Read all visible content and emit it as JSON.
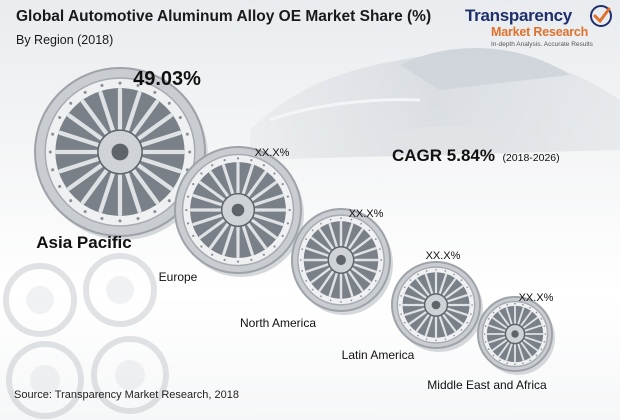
{
  "title": "Global Automotive Aluminum Alloy OE Market Share (%)",
  "subtitle": "By Region (2018)",
  "logo": {
    "line1": "Transparency",
    "line2": "Market Research",
    "line3": "In-depth Analysis. Accurate Results"
  },
  "cagr": {
    "label": "CAGR 5.84%",
    "period": "(2018-2026)"
  },
  "source": "Source: Transparency Market Research, 2018",
  "colors": {
    "wheel_rim": "#c9ccd0",
    "wheel_dark": "#5f646b",
    "text": "#111111"
  },
  "chart_data": {
    "type": "pie",
    "categories": [
      "Asia Pacific",
      "Europe",
      "North America",
      "Latin America",
      "Middle East and Africa"
    ],
    "value_labels": [
      "49.03%",
      "XX.X%",
      "XX.X%",
      "XX.X%",
      "XX.X%"
    ],
    "values": [
      49.03,
      null,
      null,
      null,
      null
    ],
    "legend": "none"
  }
}
